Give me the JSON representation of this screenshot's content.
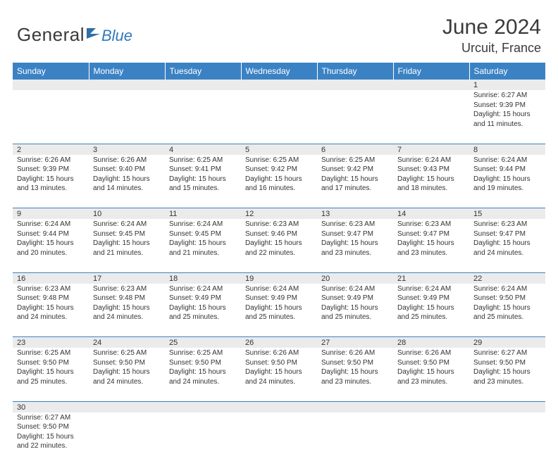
{
  "brand": {
    "word1": "General",
    "word2": "Blue",
    "word1_color": "#3a3a3a",
    "word2_color": "#3079b8",
    "flag_color": "#2f6fa8"
  },
  "title": "June 2024",
  "location": "Urcuit, France",
  "colors": {
    "header_bg": "#3b82c4",
    "header_text": "#ffffff",
    "daynum_bg": "#ebebeb",
    "cell_border": "#3b82c4",
    "text": "#333333",
    "page_bg": "#ffffff"
  },
  "weekdays": [
    "Sunday",
    "Monday",
    "Tuesday",
    "Wednesday",
    "Thursday",
    "Friday",
    "Saturday"
  ],
  "weeks": [
    [
      null,
      null,
      null,
      null,
      null,
      null,
      {
        "n": "1",
        "sr": "6:27 AM",
        "ss": "9:39 PM",
        "dl": "15 hours and 11 minutes."
      }
    ],
    [
      {
        "n": "2",
        "sr": "6:26 AM",
        "ss": "9:39 PM",
        "dl": "15 hours and 13 minutes."
      },
      {
        "n": "3",
        "sr": "6:26 AM",
        "ss": "9:40 PM",
        "dl": "15 hours and 14 minutes."
      },
      {
        "n": "4",
        "sr": "6:25 AM",
        "ss": "9:41 PM",
        "dl": "15 hours and 15 minutes."
      },
      {
        "n": "5",
        "sr": "6:25 AM",
        "ss": "9:42 PM",
        "dl": "15 hours and 16 minutes."
      },
      {
        "n": "6",
        "sr": "6:25 AM",
        "ss": "9:42 PM",
        "dl": "15 hours and 17 minutes."
      },
      {
        "n": "7",
        "sr": "6:24 AM",
        "ss": "9:43 PM",
        "dl": "15 hours and 18 minutes."
      },
      {
        "n": "8",
        "sr": "6:24 AM",
        "ss": "9:44 PM",
        "dl": "15 hours and 19 minutes."
      }
    ],
    [
      {
        "n": "9",
        "sr": "6:24 AM",
        "ss": "9:44 PM",
        "dl": "15 hours and 20 minutes."
      },
      {
        "n": "10",
        "sr": "6:24 AM",
        "ss": "9:45 PM",
        "dl": "15 hours and 21 minutes."
      },
      {
        "n": "11",
        "sr": "6:24 AM",
        "ss": "9:45 PM",
        "dl": "15 hours and 21 minutes."
      },
      {
        "n": "12",
        "sr": "6:23 AM",
        "ss": "9:46 PM",
        "dl": "15 hours and 22 minutes."
      },
      {
        "n": "13",
        "sr": "6:23 AM",
        "ss": "9:47 PM",
        "dl": "15 hours and 23 minutes."
      },
      {
        "n": "14",
        "sr": "6:23 AM",
        "ss": "9:47 PM",
        "dl": "15 hours and 23 minutes."
      },
      {
        "n": "15",
        "sr": "6:23 AM",
        "ss": "9:47 PM",
        "dl": "15 hours and 24 minutes."
      }
    ],
    [
      {
        "n": "16",
        "sr": "6:23 AM",
        "ss": "9:48 PM",
        "dl": "15 hours and 24 minutes."
      },
      {
        "n": "17",
        "sr": "6:23 AM",
        "ss": "9:48 PM",
        "dl": "15 hours and 24 minutes."
      },
      {
        "n": "18",
        "sr": "6:24 AM",
        "ss": "9:49 PM",
        "dl": "15 hours and 25 minutes."
      },
      {
        "n": "19",
        "sr": "6:24 AM",
        "ss": "9:49 PM",
        "dl": "15 hours and 25 minutes."
      },
      {
        "n": "20",
        "sr": "6:24 AM",
        "ss": "9:49 PM",
        "dl": "15 hours and 25 minutes."
      },
      {
        "n": "21",
        "sr": "6:24 AM",
        "ss": "9:49 PM",
        "dl": "15 hours and 25 minutes."
      },
      {
        "n": "22",
        "sr": "6:24 AM",
        "ss": "9:50 PM",
        "dl": "15 hours and 25 minutes."
      }
    ],
    [
      {
        "n": "23",
        "sr": "6:25 AM",
        "ss": "9:50 PM",
        "dl": "15 hours and 25 minutes."
      },
      {
        "n": "24",
        "sr": "6:25 AM",
        "ss": "9:50 PM",
        "dl": "15 hours and 24 minutes."
      },
      {
        "n": "25",
        "sr": "6:25 AM",
        "ss": "9:50 PM",
        "dl": "15 hours and 24 minutes."
      },
      {
        "n": "26",
        "sr": "6:26 AM",
        "ss": "9:50 PM",
        "dl": "15 hours and 24 minutes."
      },
      {
        "n": "27",
        "sr": "6:26 AM",
        "ss": "9:50 PM",
        "dl": "15 hours and 23 minutes."
      },
      {
        "n": "28",
        "sr": "6:26 AM",
        "ss": "9:50 PM",
        "dl": "15 hours and 23 minutes."
      },
      {
        "n": "29",
        "sr": "6:27 AM",
        "ss": "9:50 PM",
        "dl": "15 hours and 23 minutes."
      }
    ],
    [
      {
        "n": "30",
        "sr": "6:27 AM",
        "ss": "9:50 PM",
        "dl": "15 hours and 22 minutes."
      },
      null,
      null,
      null,
      null,
      null,
      null
    ]
  ],
  "labels": {
    "sunrise": "Sunrise:",
    "sunset": "Sunset:",
    "daylight": "Daylight:"
  }
}
